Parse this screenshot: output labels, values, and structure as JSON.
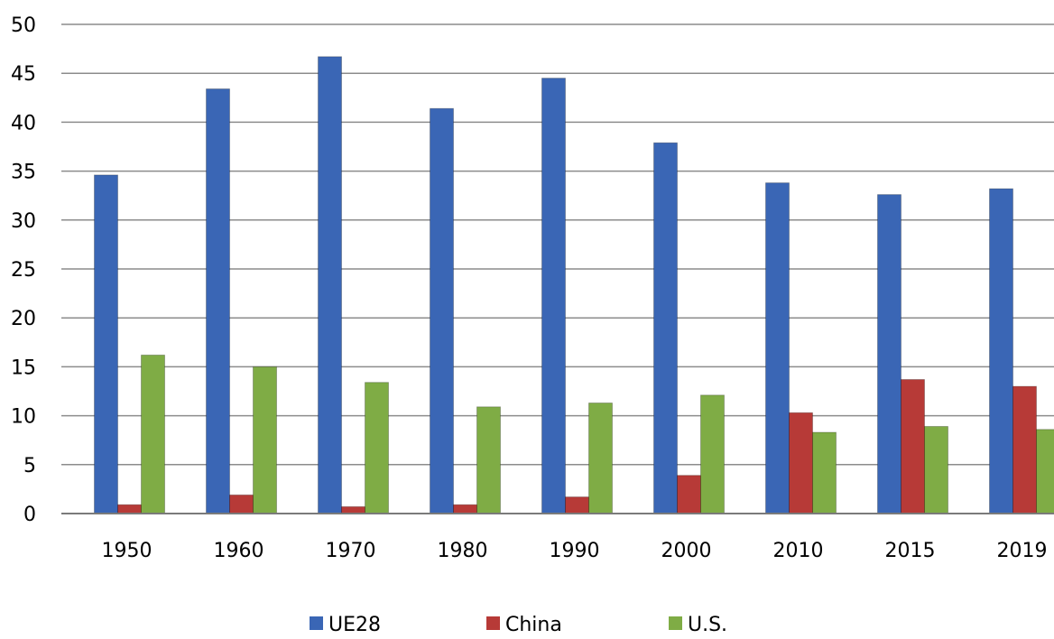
{
  "chart_data": {
    "type": "bar",
    "title": "",
    "xlabel": "",
    "ylabel": "",
    "ylim": [
      0,
      50
    ],
    "yticks": [
      0,
      5,
      10,
      15,
      20,
      25,
      30,
      35,
      40,
      45,
      50
    ],
    "grid": true,
    "legend_position": "bottom",
    "categories": [
      "1950",
      "1960",
      "1970",
      "1980",
      "1990",
      "2000",
      "2010",
      "2015",
      "2019"
    ],
    "series": [
      {
        "name": "UE28",
        "color": "#3a66b5",
        "values": [
          34.6,
          43.4,
          46.7,
          41.4,
          44.5,
          37.9,
          33.8,
          32.6,
          33.2
        ]
      },
      {
        "name": "China",
        "color": "#b73a37",
        "values": [
          0.9,
          1.9,
          0.7,
          0.9,
          1.7,
          3.9,
          10.3,
          13.7,
          13.0
        ]
      },
      {
        "name": "U.S.",
        "color": "#7fac45",
        "values": [
          16.2,
          15.0,
          13.4,
          10.9,
          11.3,
          12.1,
          8.3,
          8.9,
          8.6
        ]
      }
    ]
  }
}
